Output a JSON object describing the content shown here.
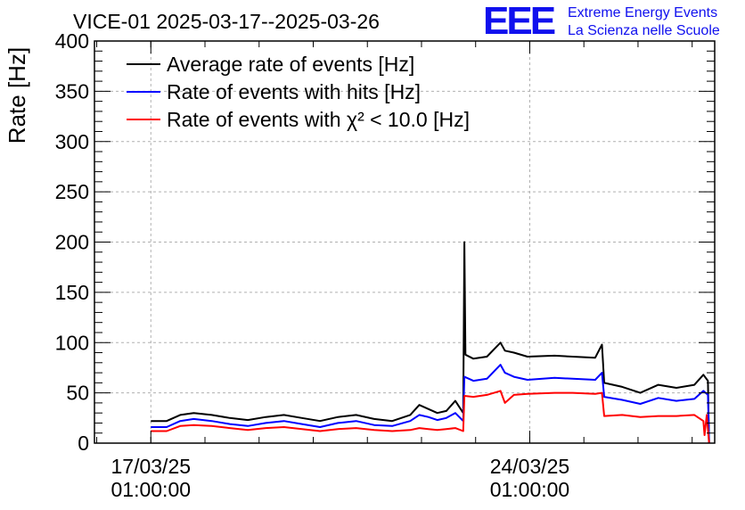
{
  "chart_data": {
    "type": "line",
    "title": "VICE-01 2025-03-17--2025-03-26",
    "ylabel": "Rate [Hz]",
    "xlabel": "",
    "ylim": [
      0,
      400
    ],
    "yticks": [
      0,
      50,
      100,
      150,
      200,
      250,
      300,
      350,
      400
    ],
    "xlim": [
      "2025-03-16T00:00:00",
      "2025-03-27T11:00:00"
    ],
    "xticks": [
      {
        "x": "2025-03-17T01:00:00",
        "line1": "17/03/25",
        "line2": "01:00:00"
      },
      {
        "x": "2025-03-24T01:00:00",
        "line1": "24/03/25",
        "line2": "01:00:00"
      }
    ],
    "grid": true,
    "legend_position": "top-left",
    "series": [
      {
        "name": "Average rate of events [Hz]",
        "color": "#000000",
        "points": [
          [
            "2025-03-17T01:00:00",
            22
          ],
          [
            "2025-03-17T08:00:00",
            22
          ],
          [
            "2025-03-17T14:00:00",
            28
          ],
          [
            "2025-03-17T20:00:00",
            30
          ],
          [
            "2025-03-18T04:00:00",
            28
          ],
          [
            "2025-03-18T12:00:00",
            25
          ],
          [
            "2025-03-18T20:00:00",
            23
          ],
          [
            "2025-03-19T04:00:00",
            26
          ],
          [
            "2025-03-19T12:00:00",
            28
          ],
          [
            "2025-03-19T20:00:00",
            25
          ],
          [
            "2025-03-20T04:00:00",
            22
          ],
          [
            "2025-03-20T12:00:00",
            26
          ],
          [
            "2025-03-20T20:00:00",
            28
          ],
          [
            "2025-03-21T04:00:00",
            24
          ],
          [
            "2025-03-21T12:00:00",
            22
          ],
          [
            "2025-03-21T20:00:00",
            28
          ],
          [
            "2025-03-22T00:00:00",
            38
          ],
          [
            "2025-03-22T04:00:00",
            34
          ],
          [
            "2025-03-22T08:00:00",
            30
          ],
          [
            "2025-03-22T12:00:00",
            32
          ],
          [
            "2025-03-22T16:00:00",
            42
          ],
          [
            "2025-03-22T19:30:00",
            30
          ],
          [
            "2025-03-22T20:00:00",
            200
          ],
          [
            "2025-03-22T20:30:00",
            88
          ],
          [
            "2025-03-23T00:00:00",
            84
          ],
          [
            "2025-03-23T06:00:00",
            86
          ],
          [
            "2025-03-23T12:00:00",
            100
          ],
          [
            "2025-03-23T14:00:00",
            92
          ],
          [
            "2025-03-23T18:00:00",
            90
          ],
          [
            "2025-03-24T00:00:00",
            86
          ],
          [
            "2025-03-24T12:00:00",
            87
          ],
          [
            "2025-03-24T20:00:00",
            86
          ],
          [
            "2025-03-25T06:00:00",
            85
          ],
          [
            "2025-03-25T09:00:00",
            98
          ],
          [
            "2025-03-25T10:00:00",
            60
          ],
          [
            "2025-03-25T18:00:00",
            56
          ],
          [
            "2025-03-26T02:00:00",
            50
          ],
          [
            "2025-03-26T10:00:00",
            58
          ],
          [
            "2025-03-26T18:00:00",
            55
          ],
          [
            "2025-03-27T02:00:00",
            58
          ],
          [
            "2025-03-27T06:00:00",
            68
          ],
          [
            "2025-03-27T08:00:00",
            62
          ],
          [
            "2025-03-27T08:30:00",
            0
          ]
        ]
      },
      {
        "name": "Rate of events with hits [Hz]",
        "color": "#0000ff",
        "points": [
          [
            "2025-03-17T01:00:00",
            16
          ],
          [
            "2025-03-17T08:00:00",
            16
          ],
          [
            "2025-03-17T14:00:00",
            22
          ],
          [
            "2025-03-17T20:00:00",
            24
          ],
          [
            "2025-03-18T04:00:00",
            22
          ],
          [
            "2025-03-18T12:00:00",
            19
          ],
          [
            "2025-03-18T20:00:00",
            17
          ],
          [
            "2025-03-19T04:00:00",
            20
          ],
          [
            "2025-03-19T12:00:00",
            22
          ],
          [
            "2025-03-19T20:00:00",
            19
          ],
          [
            "2025-03-20T04:00:00",
            16
          ],
          [
            "2025-03-20T12:00:00",
            20
          ],
          [
            "2025-03-20T20:00:00",
            22
          ],
          [
            "2025-03-21T04:00:00",
            18
          ],
          [
            "2025-03-21T12:00:00",
            17
          ],
          [
            "2025-03-21T20:00:00",
            22
          ],
          [
            "2025-03-22T00:00:00",
            28
          ],
          [
            "2025-03-22T04:00:00",
            26
          ],
          [
            "2025-03-22T08:00:00",
            23
          ],
          [
            "2025-03-22T12:00:00",
            25
          ],
          [
            "2025-03-22T16:00:00",
            30
          ],
          [
            "2025-03-22T19:30:00",
            22
          ],
          [
            "2025-03-22T20:00:00",
            66
          ],
          [
            "2025-03-23T00:00:00",
            62
          ],
          [
            "2025-03-23T06:00:00",
            64
          ],
          [
            "2025-03-23T12:00:00",
            78
          ],
          [
            "2025-03-23T14:00:00",
            70
          ],
          [
            "2025-03-23T18:00:00",
            66
          ],
          [
            "2025-03-24T00:00:00",
            63
          ],
          [
            "2025-03-24T12:00:00",
            65
          ],
          [
            "2025-03-24T20:00:00",
            64
          ],
          [
            "2025-03-25T06:00:00",
            63
          ],
          [
            "2025-03-25T09:00:00",
            70
          ],
          [
            "2025-03-25T10:00:00",
            46
          ],
          [
            "2025-03-25T18:00:00",
            43
          ],
          [
            "2025-03-26T02:00:00",
            39
          ],
          [
            "2025-03-26T10:00:00",
            45
          ],
          [
            "2025-03-26T18:00:00",
            42
          ],
          [
            "2025-03-27T02:00:00",
            44
          ],
          [
            "2025-03-27T06:00:00",
            52
          ],
          [
            "2025-03-27T08:00:00",
            48
          ],
          [
            "2025-03-27T08:30:00",
            0
          ]
        ]
      },
      {
        "name": "Rate of events with χ² < 10.0 [Hz]",
        "color": "#ff0000",
        "points": [
          [
            "2025-03-17T01:00:00",
            12
          ],
          [
            "2025-03-17T08:00:00",
            12
          ],
          [
            "2025-03-17T14:00:00",
            17
          ],
          [
            "2025-03-17T20:00:00",
            18
          ],
          [
            "2025-03-18T04:00:00",
            17
          ],
          [
            "2025-03-18T12:00:00",
            15
          ],
          [
            "2025-03-18T20:00:00",
            13
          ],
          [
            "2025-03-19T04:00:00",
            15
          ],
          [
            "2025-03-19T12:00:00",
            16
          ],
          [
            "2025-03-19T20:00:00",
            14
          ],
          [
            "2025-03-20T04:00:00",
            12
          ],
          [
            "2025-03-20T12:00:00",
            14
          ],
          [
            "2025-03-20T20:00:00",
            15
          ],
          [
            "2025-03-21T04:00:00",
            13
          ],
          [
            "2025-03-21T12:00:00",
            12
          ],
          [
            "2025-03-21T20:00:00",
            13
          ],
          [
            "2025-03-22T00:00:00",
            15
          ],
          [
            "2025-03-22T04:00:00",
            14
          ],
          [
            "2025-03-22T08:00:00",
            13
          ],
          [
            "2025-03-22T12:00:00",
            14
          ],
          [
            "2025-03-22T16:00:00",
            15
          ],
          [
            "2025-03-22T19:30:00",
            12
          ],
          [
            "2025-03-22T20:00:00",
            47
          ],
          [
            "2025-03-23T00:00:00",
            46
          ],
          [
            "2025-03-23T06:00:00",
            48
          ],
          [
            "2025-03-23T12:00:00",
            52
          ],
          [
            "2025-03-23T14:00:00",
            40
          ],
          [
            "2025-03-23T18:00:00",
            48
          ],
          [
            "2025-03-24T00:00:00",
            49
          ],
          [
            "2025-03-24T12:00:00",
            50
          ],
          [
            "2025-03-24T20:00:00",
            50
          ],
          [
            "2025-03-25T06:00:00",
            49
          ],
          [
            "2025-03-25T09:00:00",
            50
          ],
          [
            "2025-03-25T10:00:00",
            27
          ],
          [
            "2025-03-25T18:00:00",
            28
          ],
          [
            "2025-03-26T02:00:00",
            26
          ],
          [
            "2025-03-26T10:00:00",
            27
          ],
          [
            "2025-03-26T18:00:00",
            27
          ],
          [
            "2025-03-27T02:00:00",
            28
          ],
          [
            "2025-03-27T06:00:00",
            22
          ],
          [
            "2025-03-27T06:30:00",
            8
          ],
          [
            "2025-03-27T07:30:00",
            28
          ],
          [
            "2025-03-27T08:30:00",
            0
          ]
        ]
      }
    ]
  },
  "logo": {
    "mark": "EEE",
    "line1": "Extreme Energy Events",
    "line2": "La Scienza nelle Scuole",
    "color": "#1010ee"
  }
}
